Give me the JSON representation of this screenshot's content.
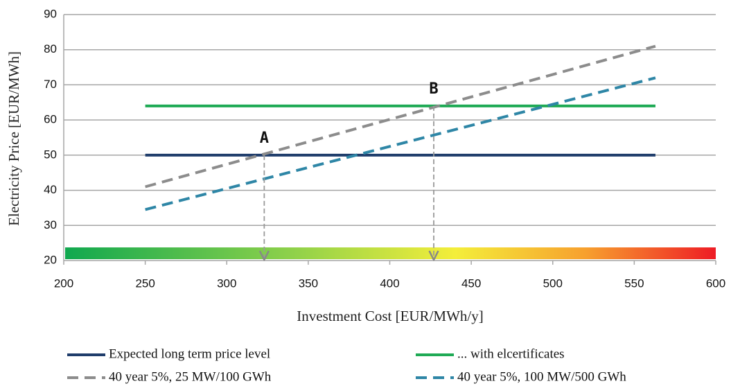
{
  "chart_data": {
    "type": "line",
    "x_label": "Investment Cost [EUR/MWh/y]",
    "y_label": "Electricity Price [EUR/MWh]",
    "xlim": [
      200,
      600
    ],
    "xticks": [
      200,
      250,
      300,
      350,
      400,
      450,
      500,
      550,
      600
    ],
    "ylim": [
      20,
      90
    ],
    "yticks": [
      20,
      30,
      40,
      50,
      60,
      70,
      80,
      90
    ],
    "grid": true,
    "series": [
      {
        "name": "Expected long term price level",
        "color": "#1f3d6b",
        "dashed": false,
        "x": [
          250,
          563
        ],
        "values": [
          50,
          50
        ]
      },
      {
        "name": "... with elcertificates",
        "color": "#1faa55",
        "dashed": false,
        "x": [
          250,
          563
        ],
        "values": [
          64,
          64
        ]
      },
      {
        "name": "40 year 5%, 25 MW/100 GWh",
        "color": "#8c8c8c",
        "dashed": true,
        "x": [
          250,
          563
        ],
        "values": [
          41,
          81
        ]
      },
      {
        "name": "40 year 5%, 100 MW/500 GWh",
        "color": "#2e86a6",
        "dashed": true,
        "x": [
          250,
          563
        ],
        "values": [
          34.5,
          72
        ]
      }
    ],
    "annotations": [
      {
        "text": "A",
        "x": 323,
        "y": 50
      },
      {
        "text": "B",
        "x": 427,
        "y": 64
      }
    ]
  }
}
